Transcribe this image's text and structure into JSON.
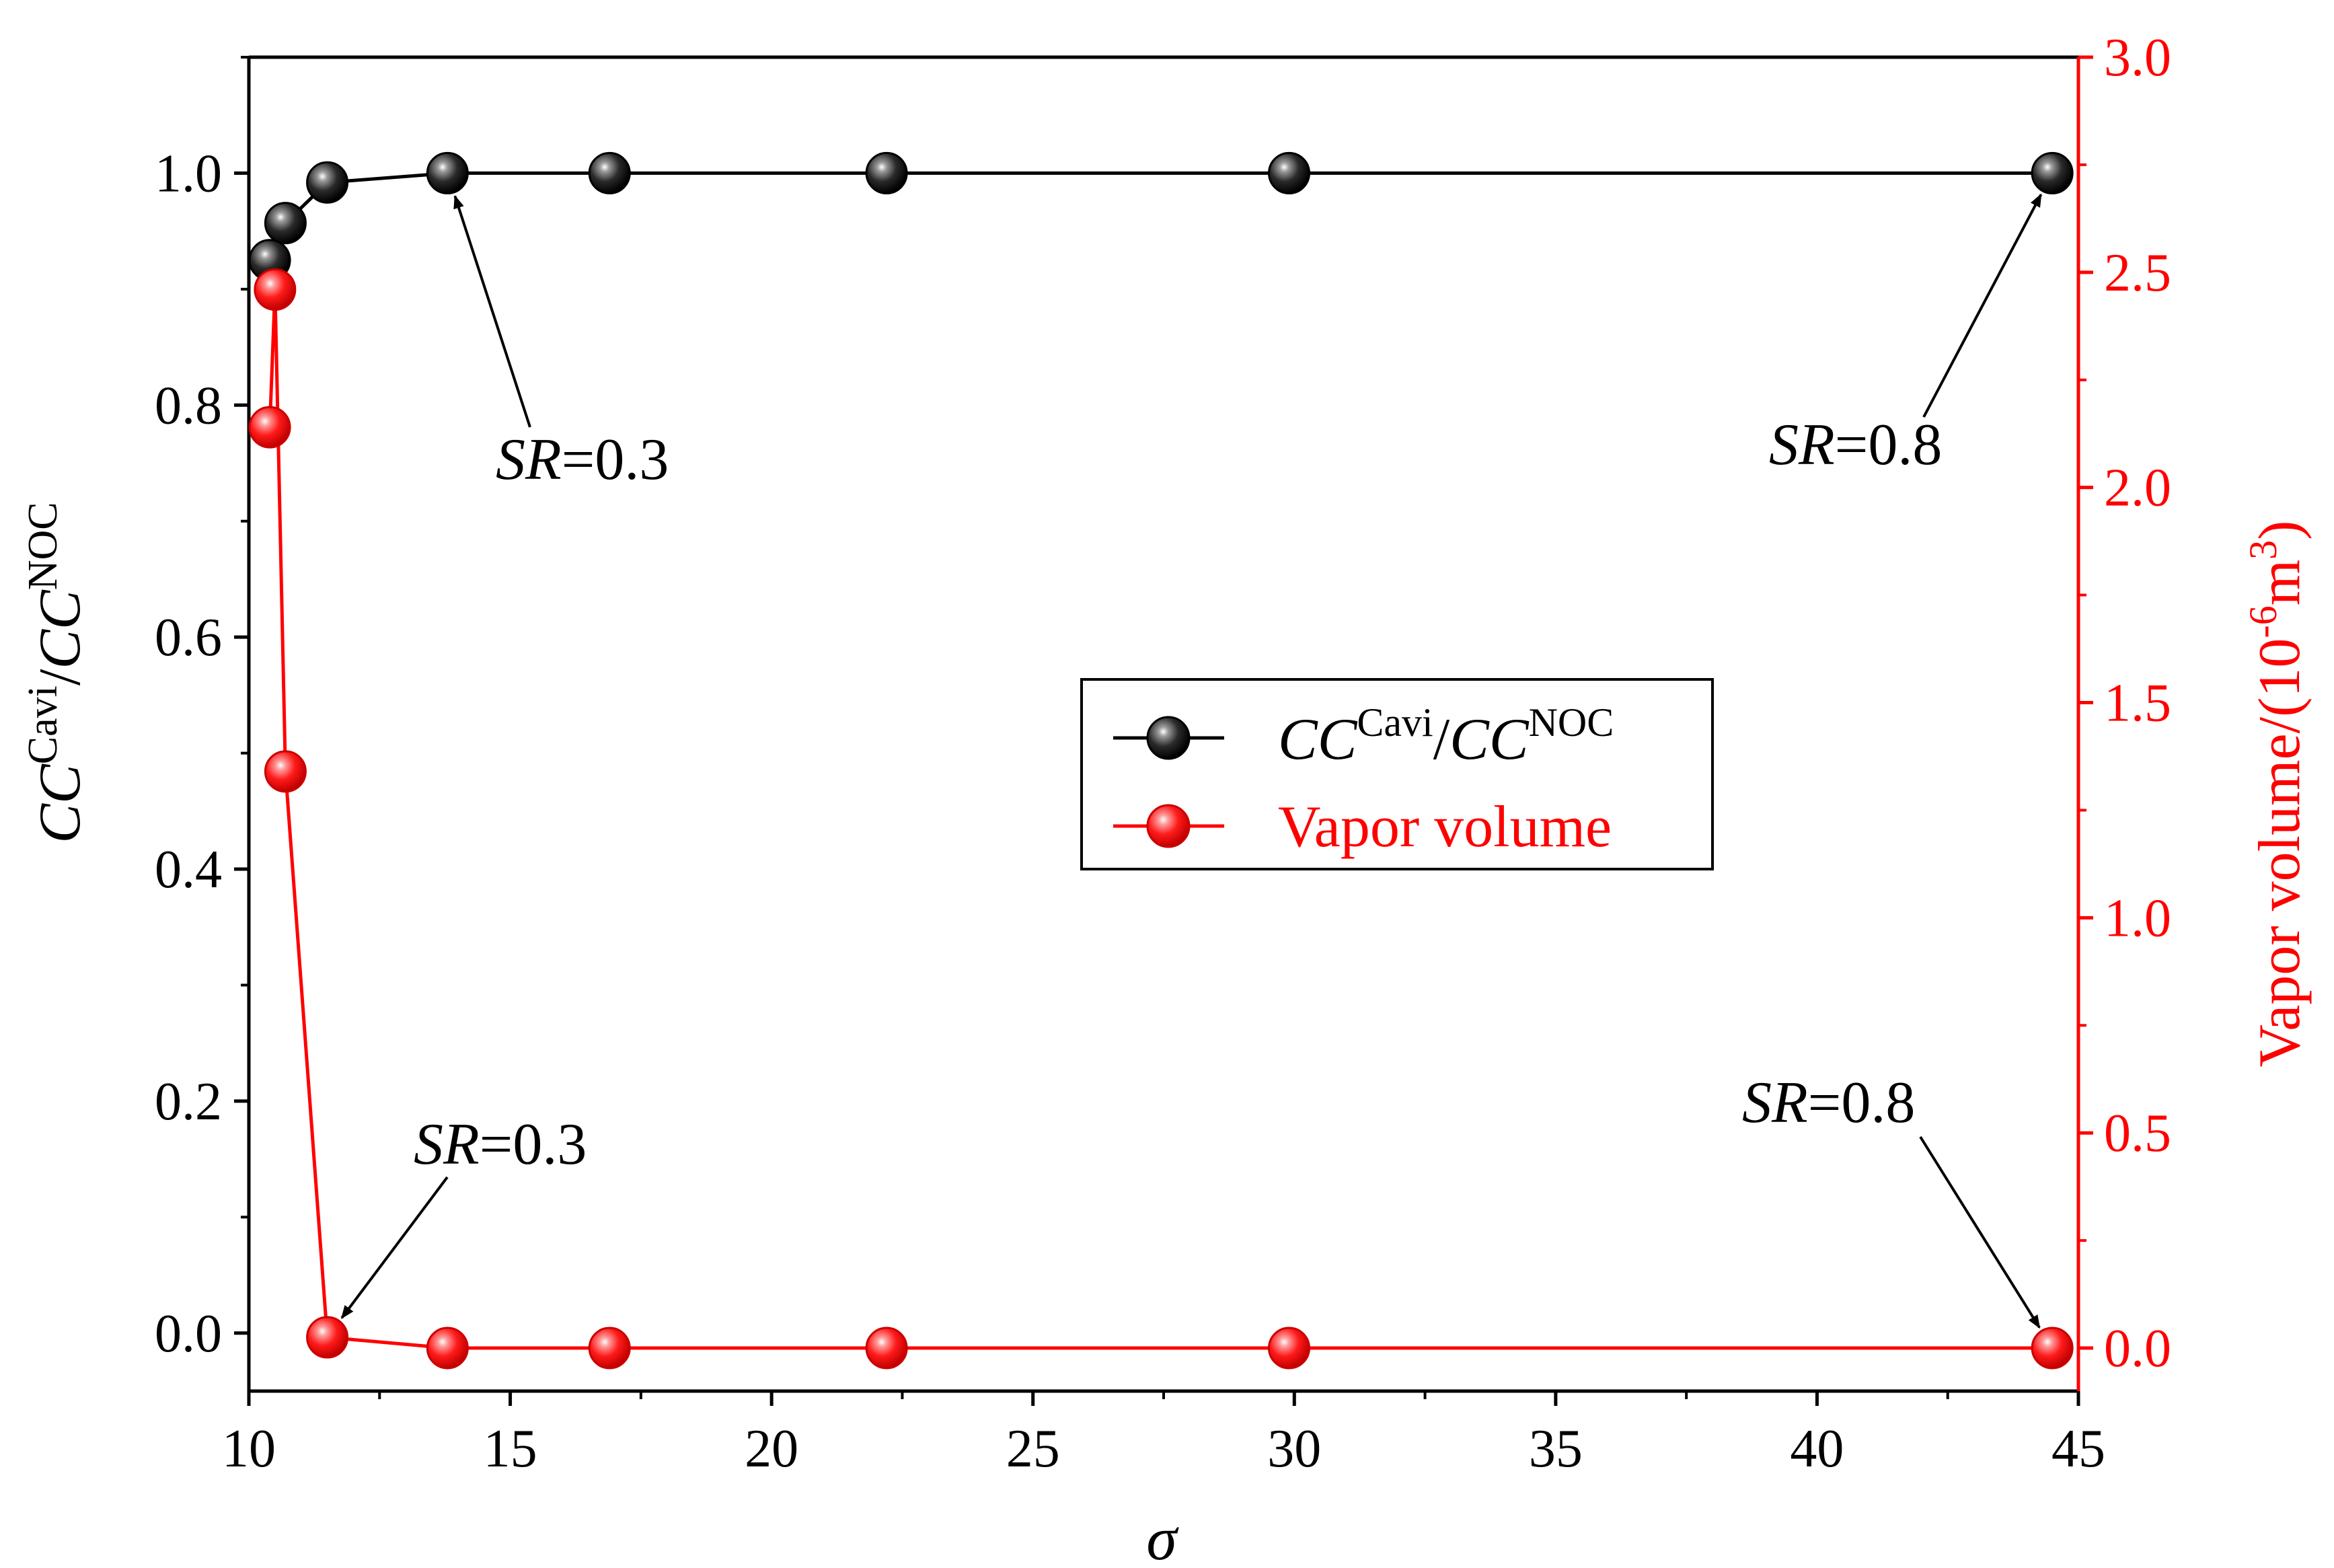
{
  "chart_data": {
    "type": "line",
    "x_axis": {
      "label": "σ",
      "range": [
        10,
        45
      ],
      "ticks": [
        "10",
        "15",
        "20",
        "25",
        "30",
        "35",
        "40",
        "45"
      ]
    },
    "y_left": {
      "label_base": "CC",
      "label_sup1": "Cavi",
      "label_sep": "/",
      "label_sup2": "NOC",
      "range": [
        -0.05,
        1.1
      ],
      "ticks": [
        "0.0",
        "0.2",
        "0.4",
        "0.6",
        "0.8",
        "1.0"
      ],
      "color": "#000000"
    },
    "y_right": {
      "label_main": "Vapor volume/(10",
      "label_exp": "-6",
      "label_unit": "m",
      "label_unit_exp": "3",
      "label_close": ")",
      "range": [
        -0.1,
        3.0
      ],
      "ticks": [
        "0.0",
        "0.5",
        "1.0",
        "1.5",
        "2.0",
        "2.5",
        "3.0"
      ],
      "color": "#ff0000"
    },
    "series": [
      {
        "name": "CC^Cavi/CC^NOC",
        "axis": "left",
        "color": "#000000",
        "x": [
          10.4,
          10.7,
          11.5,
          13.8,
          16.9,
          22.2,
          29.9,
          44.5
        ],
        "values": [
          0.925,
          0.957,
          0.992,
          1.0,
          1.0,
          1.0,
          1.0,
          1.0
        ]
      },
      {
        "name": "Vapor volume",
        "axis": "right",
        "color": "#ff0000",
        "x": [
          10.4,
          10.5,
          10.7,
          11.5,
          13.8,
          16.9,
          22.2,
          29.9,
          44.5
        ],
        "values": [
          2.14,
          2.46,
          1.34,
          0.025,
          0.0,
          0.0,
          0.0,
          0.0,
          0.0
        ]
      }
    ],
    "legend": {
      "placement": "center-right",
      "entries": [
        {
          "base": "CC",
          "sup1": "Cavi",
          "sep": "/",
          "sup2": "NOC"
        },
        {
          "text": "Vapor volume"
        }
      ]
    },
    "annotations": [
      {
        "italic": "SR",
        "text": "=0.3",
        "arrow_to_x": 13.8,
        "arrow_to_value": 1.0,
        "axis": "left"
      },
      {
        "italic": "SR",
        "text": "=0.8",
        "arrow_to_x": 44.5,
        "arrow_to_value": 1.0,
        "axis": "left"
      },
      {
        "italic": "SR",
        "text": "=0.3",
        "arrow_to_x": 11.5,
        "arrow_to_value": 0.025,
        "axis": "right"
      },
      {
        "italic": "SR",
        "text": "=0.8",
        "arrow_to_x": 44.5,
        "arrow_to_value": 0.0,
        "axis": "right"
      }
    ],
    "grid": false
  }
}
